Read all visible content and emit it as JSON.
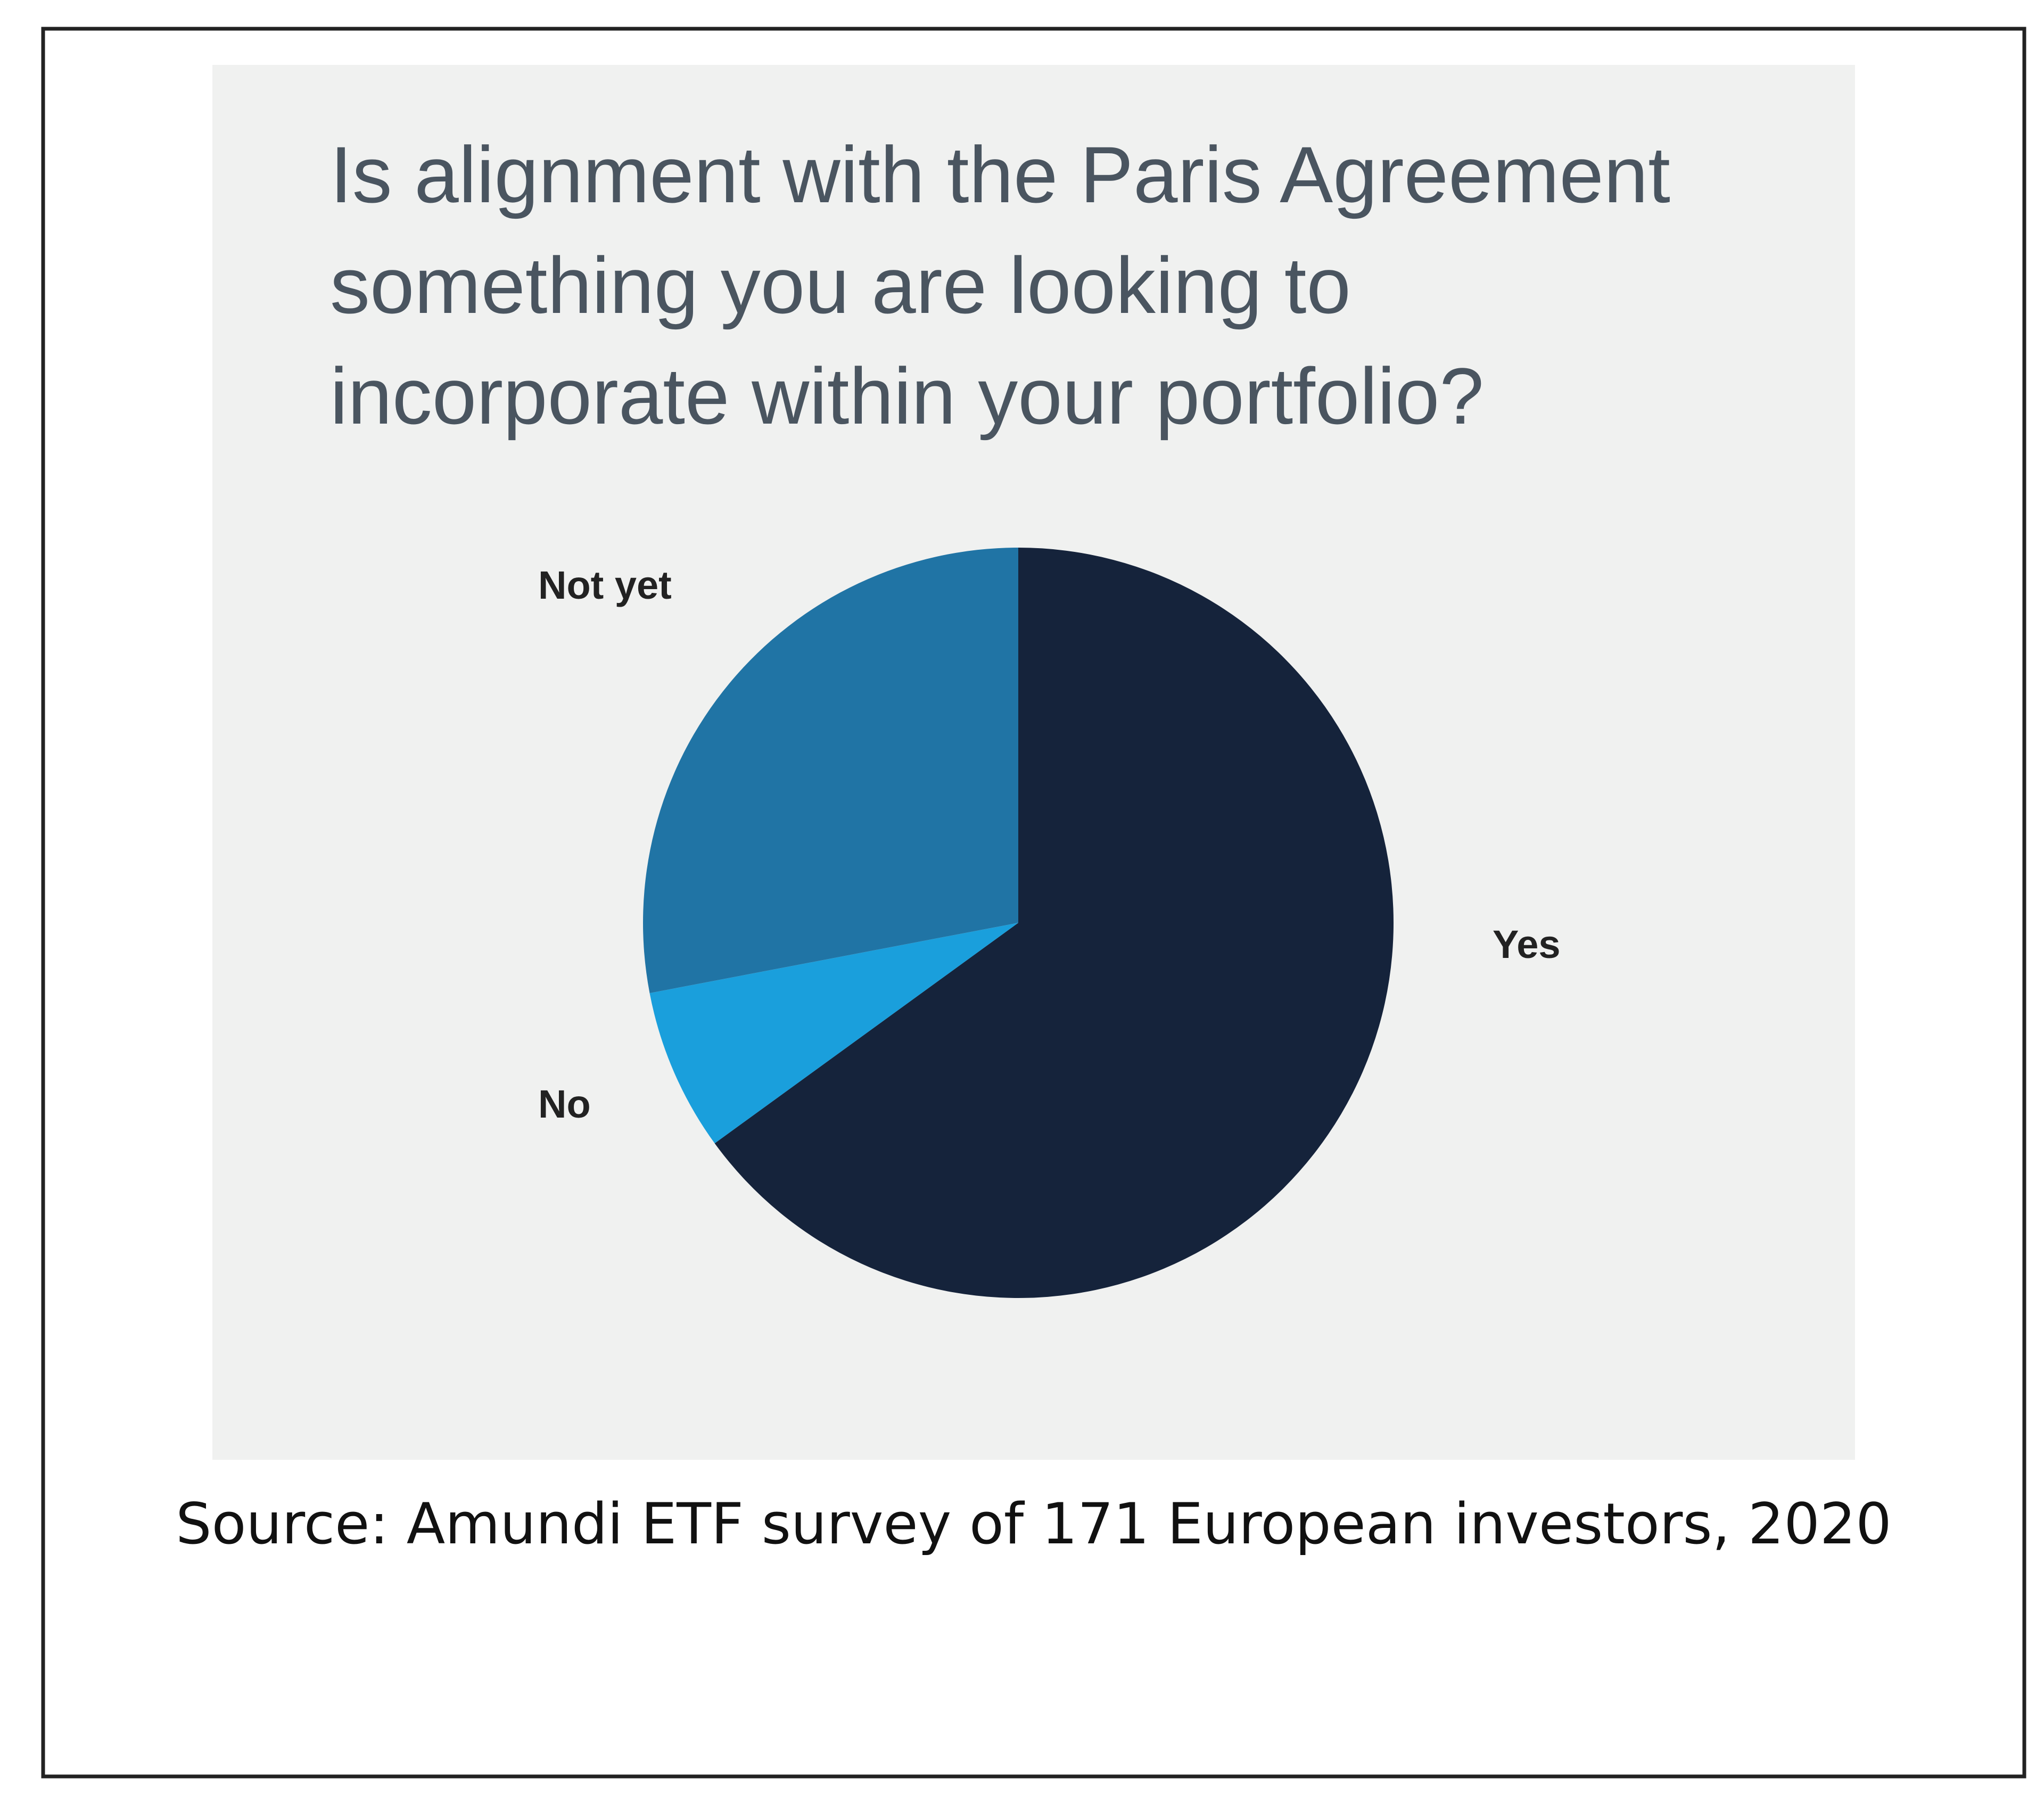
{
  "chart_data": {
    "type": "pie",
    "title": "Is alignment with the Paris Agreement something you are looking to incorporate within your portfolio?",
    "title_lines": [
      "Is alignment with the Paris Agreement",
      "something you are looking to",
      "incorporate within your portfolio?"
    ],
    "categories": [
      "Yes",
      "No",
      "Not yet"
    ],
    "values": [
      65,
      7,
      28
    ],
    "colors": [
      "#15233b",
      "#1a9fdc",
      "#2074a5"
    ],
    "source": "Source: Amundi ETF survey of 171 European investors, 2020"
  }
}
